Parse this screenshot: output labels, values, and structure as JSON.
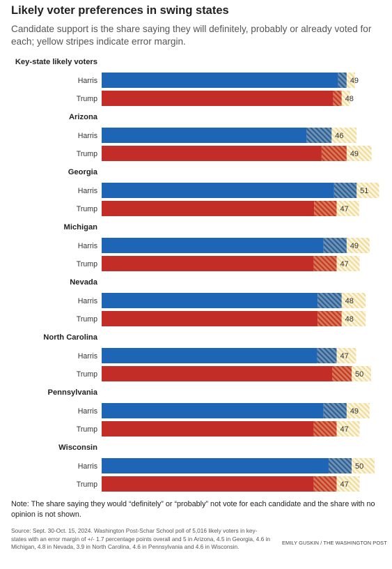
{
  "title": "Likely voter preferences in swing states",
  "subtitle": "Candidate support is the share saying they will definitely, probably or already voted for each; yellow stripes indicate error margin.",
  "note": "Note: The share saying they would “definitely” or “probably” not vote for each candidate and the share with no opinion is not shown.",
  "source": "Source: Sept. 30-Oct. 15, 2024. Washington Post-Schar School poll of 5,016 likely voters in key-states with an error margin of +/- 1.7 percentage points overall and 5 in Arizona, 4.5 in Georgia, 4.6 in Michigan, 4.8 in Nevada, 3.9 in North Carolina, 4.6 in Pennsylvania and 4.6 in Wisconsin.",
  "credit": "EMILY GUSKIN / THE WASHINGTON POST",
  "colors": {
    "harris": "#1f65b5",
    "trump": "#c22e27",
    "margin_stripe": "#f0dc9a"
  },
  "chart_data": {
    "type": "bar",
    "orientation": "horizontal",
    "title": "Likely voter preferences in swing states",
    "subtitle": "Candidate support is the share saying they will definitely, probably or already voted for each; yellow stripes indicate error margin.",
    "xlabel": "",
    "ylabel": "",
    "xlim": [
      0,
      65
    ],
    "grid": false,
    "legend": "none",
    "series_names": [
      "Harris",
      "Trump"
    ],
    "groups": [
      {
        "name": "Key-state likely voters",
        "margin": 1.7,
        "values": {
          "Harris": 49,
          "Trump": 48
        }
      },
      {
        "name": "Arizona",
        "margin": 5,
        "values": {
          "Harris": 46,
          "Trump": 49
        }
      },
      {
        "name": "Georgia",
        "margin": 4.5,
        "values": {
          "Harris": 51,
          "Trump": 47
        }
      },
      {
        "name": "Michigan",
        "margin": 4.6,
        "values": {
          "Harris": 49,
          "Trump": 47
        }
      },
      {
        "name": "Nevada",
        "margin": 4.8,
        "values": {
          "Harris": 48,
          "Trump": 48
        }
      },
      {
        "name": "North Carolina",
        "margin": 3.9,
        "values": {
          "Harris": 47,
          "Trump": 50
        }
      },
      {
        "name": "Pennsylvania",
        "margin": 4.6,
        "values": {
          "Harris": 49,
          "Trump": 47
        }
      },
      {
        "name": "Wisconsin",
        "margin": 4.6,
        "values": {
          "Harris": 50,
          "Trump": 47
        }
      }
    ]
  }
}
